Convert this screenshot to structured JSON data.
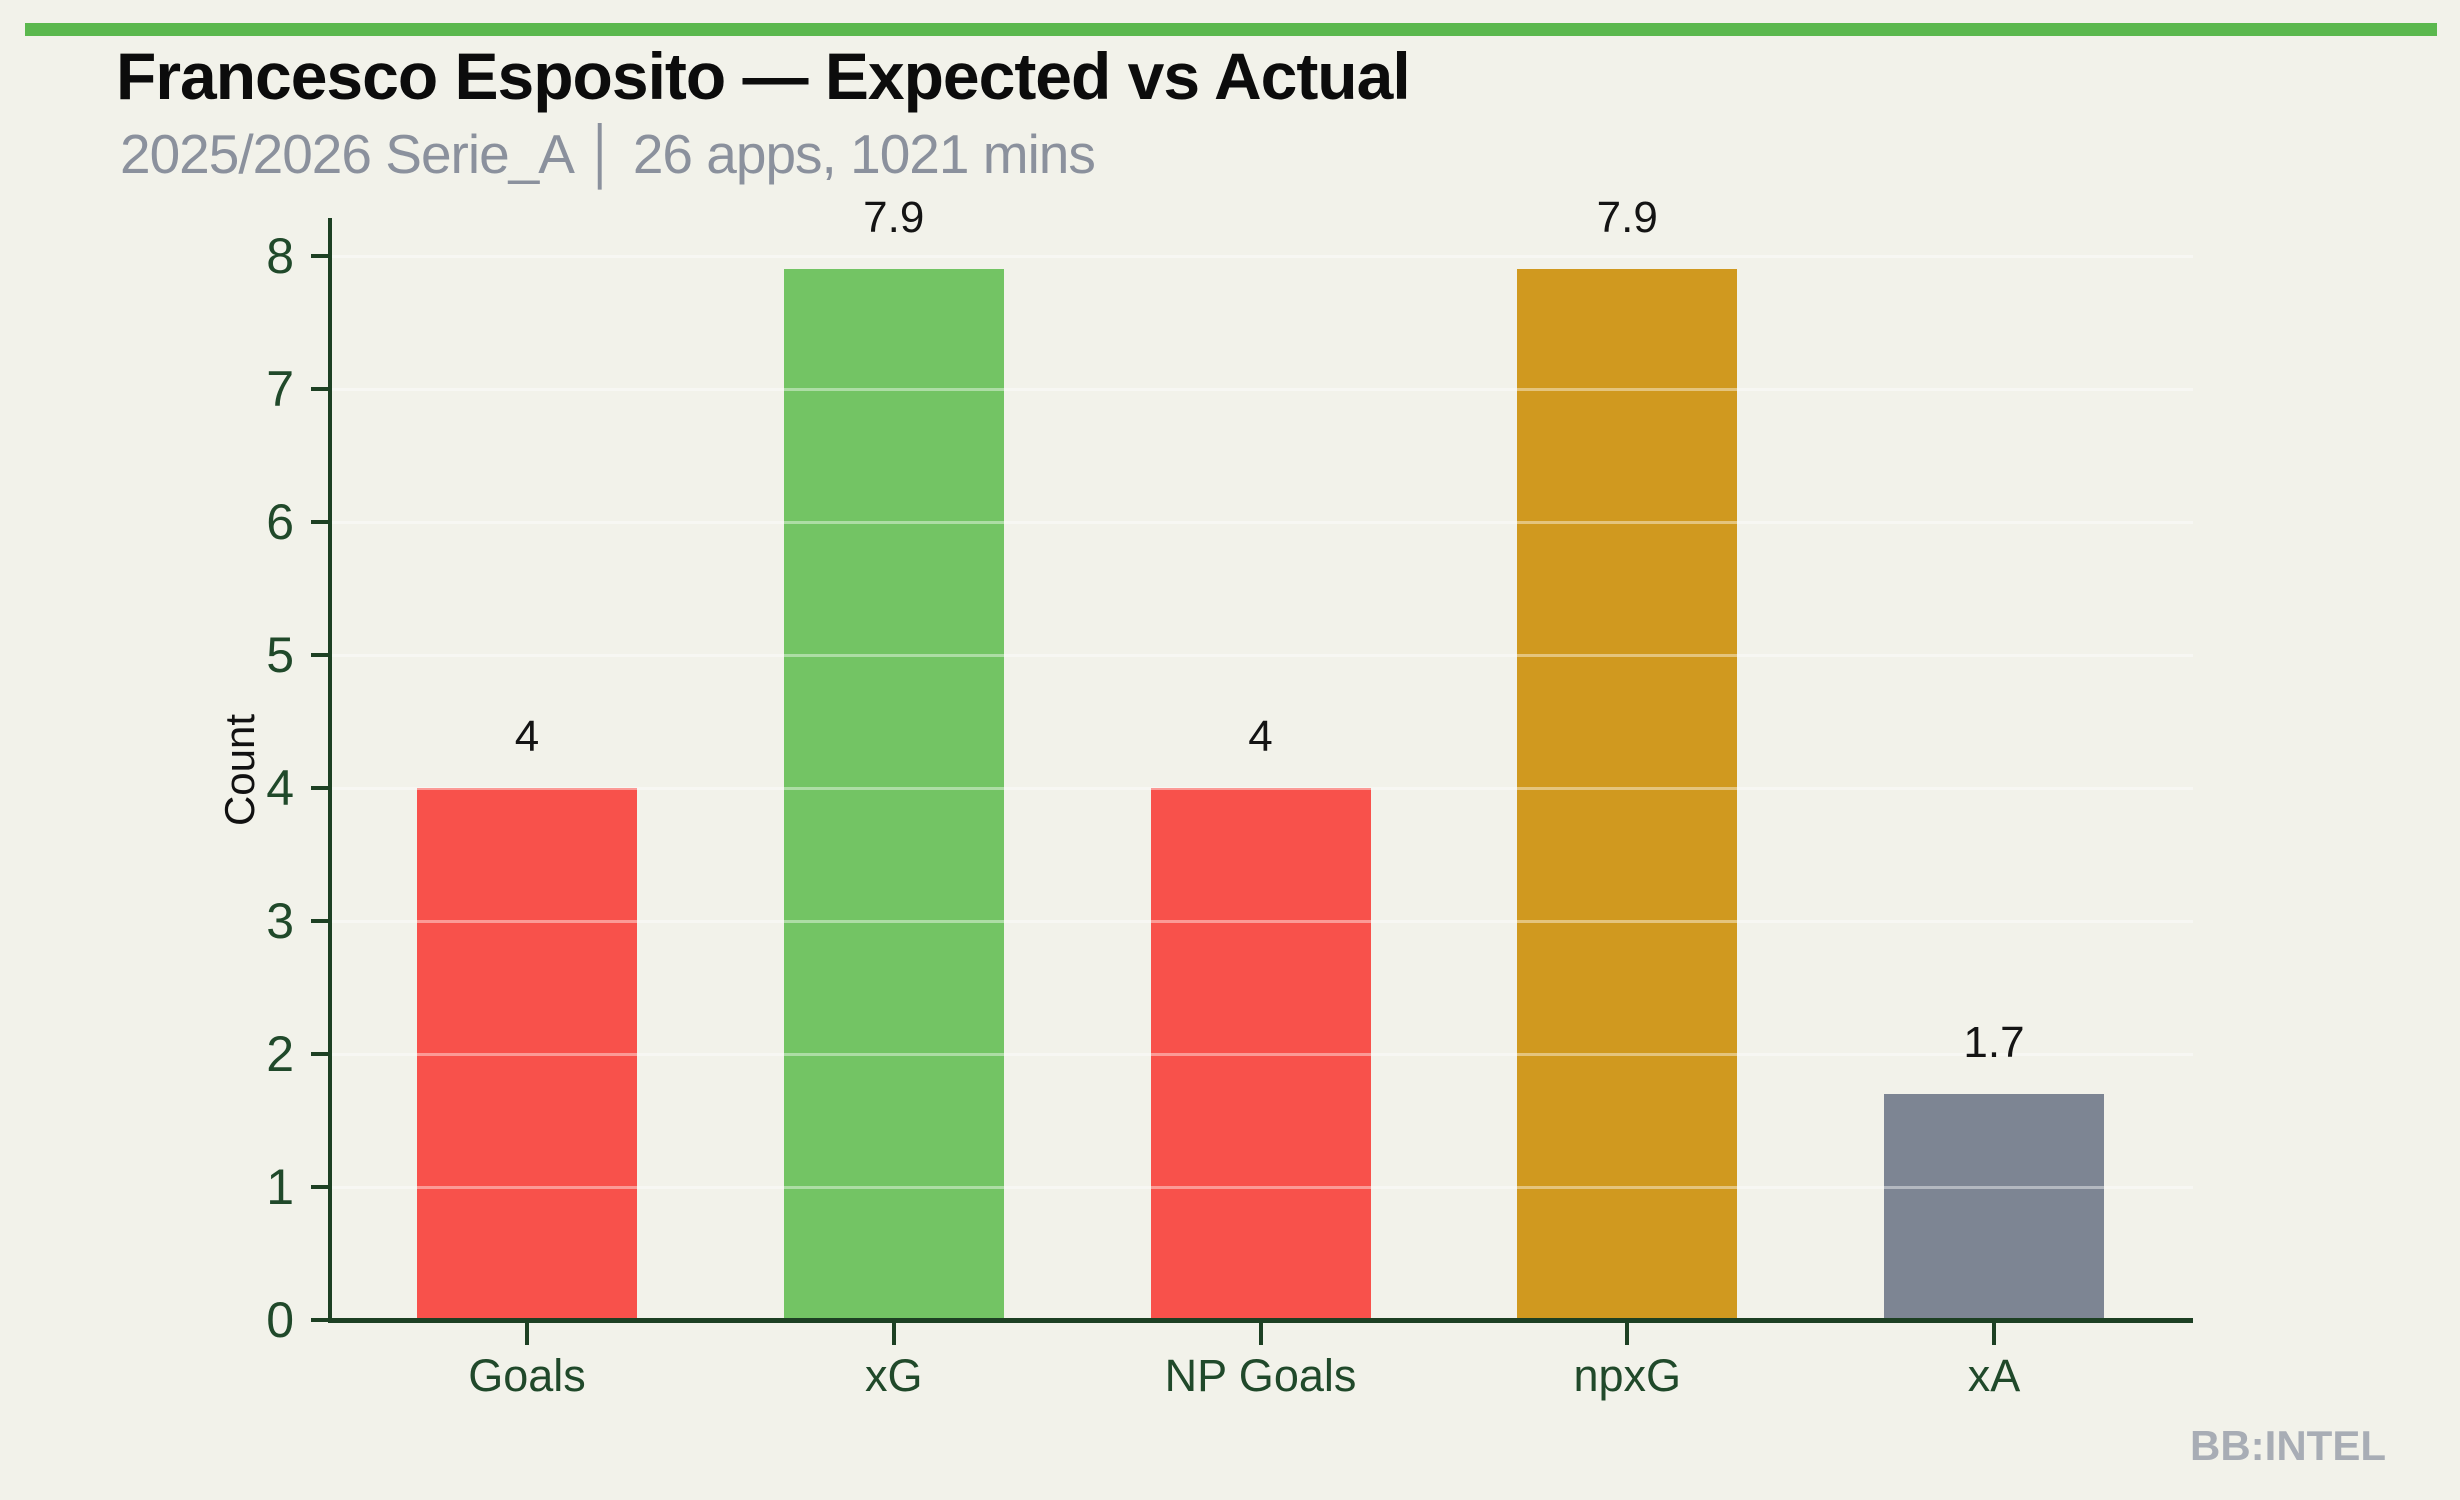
{
  "header": {
    "title": "Francesco Esposito — Expected vs Actual",
    "subtitle": "2025/2026 Serie_A │ 26 apps, 1021 mins",
    "accent_color": "#5bb84e"
  },
  "watermark": "BB:INTEL",
  "chart_data": {
    "type": "bar",
    "title": "Francesco Esposito — Expected vs Actual",
    "subtitle": "2025/2026 Serie_A | 26 apps, 1021 mins",
    "categories": [
      "Goals",
      "xG",
      "NP Goals",
      "npxG",
      "xA"
    ],
    "values": [
      4,
      7.9,
      4,
      7.9,
      1.7
    ],
    "value_labels": [
      "4",
      "7.9",
      "4",
      "7.9",
      "1.7"
    ],
    "bar_colors": [
      "#f8514b",
      "#73c464",
      "#f8514b",
      "#d0991f",
      "#7d8593"
    ],
    "xlabel": "",
    "ylabel": "Count",
    "ylim": [
      0,
      8
    ],
    "yticks": [
      0,
      1,
      2,
      3,
      4,
      5,
      6,
      7,
      8
    ],
    "grid": "horizontal gridlines at integer counts, drawn over bars",
    "legend": "none",
    "axis_color": "#1d4023",
    "tick_label_color": "#20492a",
    "background_color": "#f2f2ea"
  }
}
